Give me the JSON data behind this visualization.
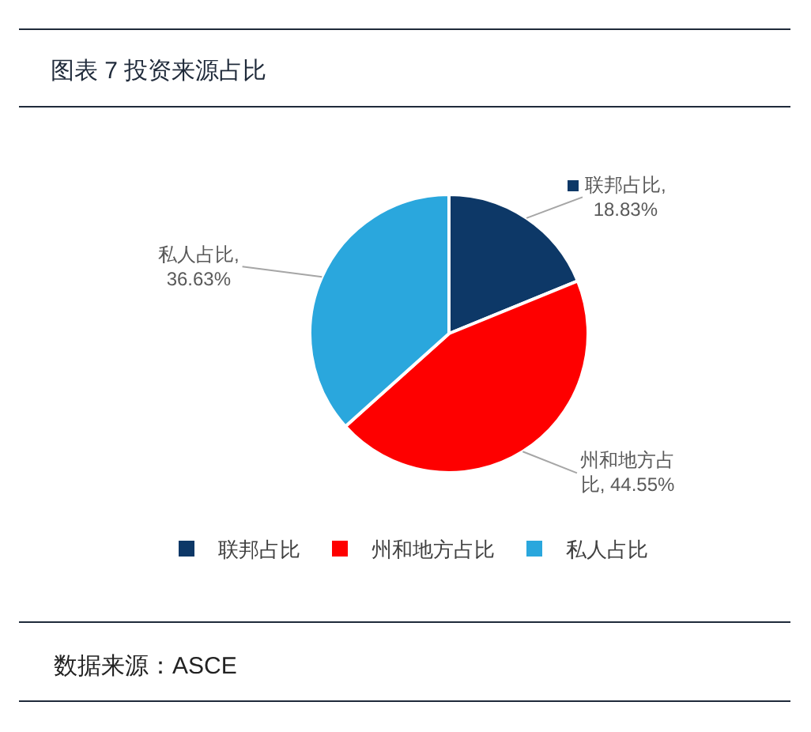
{
  "chart_data": {
    "type": "pie",
    "title": "图表 7 投资来源占比",
    "categories": [
      "联邦占比",
      "州和地方占比",
      "私人占比"
    ],
    "values": [
      18.83,
      44.55,
      36.63
    ],
    "colors": [
      "#0d3867",
      "#fe0000",
      "#2aa7dd"
    ],
    "value_labels": [
      "联邦占比, 18.83%",
      "州和地方占比, 44.55%",
      "私人占比, 36.63%"
    ],
    "legend": "bottom",
    "annotations": [
      "数据来源：ASCE"
    ]
  }
}
